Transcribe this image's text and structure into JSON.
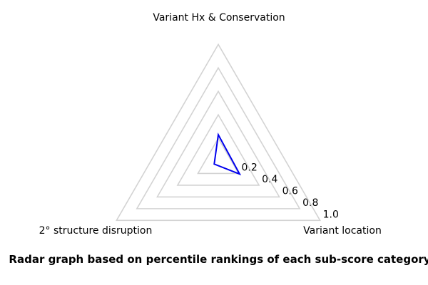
{
  "chart_data": {
    "type": "radar",
    "title": "Variant Hx & Conservation",
    "categories": [
      "Variant Hx & Conservation",
      "Variant location",
      "2° structure disruption"
    ],
    "values": [
      0.23,
      0.21,
      0.04
    ],
    "ticks": [
      0.2,
      0.4,
      0.6,
      0.8,
      1.0
    ],
    "tick_labels": [
      "0.2",
      "0.4",
      "0.6",
      "0.8",
      "1.0"
    ],
    "rlim": [
      0,
      1.0
    ],
    "grid": true,
    "legend": "none",
    "line_color": "#0000ee",
    "grid_color": "#d3d3d3",
    "caption": "Radar graph based on percentile rankings of each sub-score category"
  }
}
